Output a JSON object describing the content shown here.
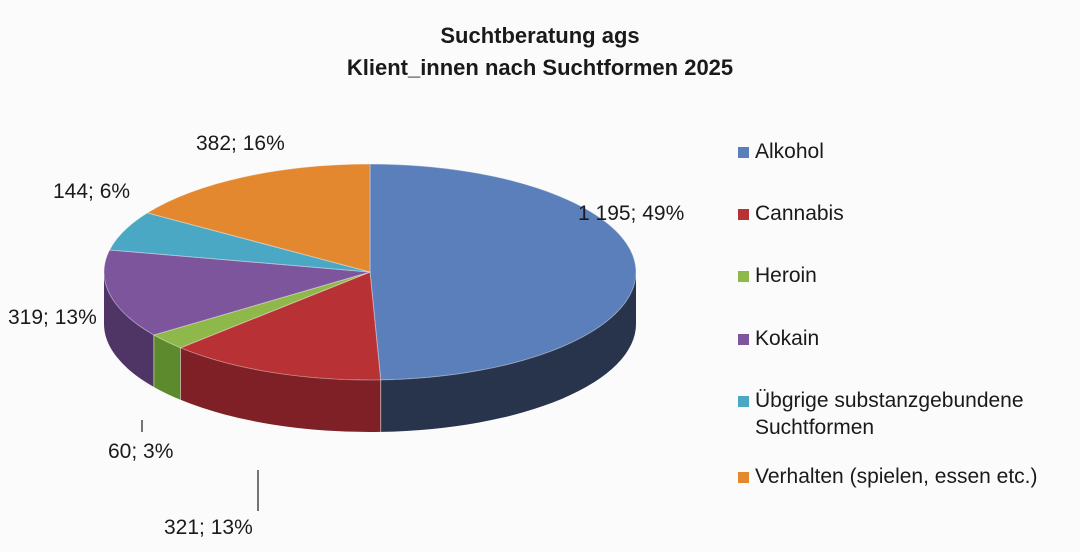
{
  "chart_data": {
    "type": "pie",
    "title": "Suchtberatung ags",
    "subtitle": "Klient_innen nach Suchtformen 2025",
    "legend_position": "right",
    "three_d": true,
    "slices": [
      {
        "name": "Alkohol",
        "value": 1195,
        "percent": 49,
        "label": "1 195; 49%",
        "color": "#5b7fba",
        "side_color": "#27344b"
      },
      {
        "name": "Cannabis",
        "value": 321,
        "percent": 13,
        "label": "321; 13%",
        "color": "#b83134",
        "side_color": "#7e2026"
      },
      {
        "name": "Heroin",
        "value": 60,
        "percent": 3,
        "label": "60; 3%",
        "color": "#8fb84a",
        "side_color": "#5e8a2e"
      },
      {
        "name": "Kokain",
        "value": 319,
        "percent": 13,
        "label": "319; 13%",
        "color": "#7d559c",
        "side_color": "#4f3566"
      },
      {
        "name": "Übgrige substanzgebundene Suchtformen",
        "value": 144,
        "percent": 6,
        "label": "144; 6%",
        "color": "#4aa8c4",
        "side_color": "#2f7f98"
      },
      {
        "name": "Verhalten (spielen, essen etc.)",
        "value": 382,
        "percent": 16,
        "label": "382; 16%",
        "color": "#e3882f",
        "side_color": "#a8621f"
      }
    ]
  }
}
